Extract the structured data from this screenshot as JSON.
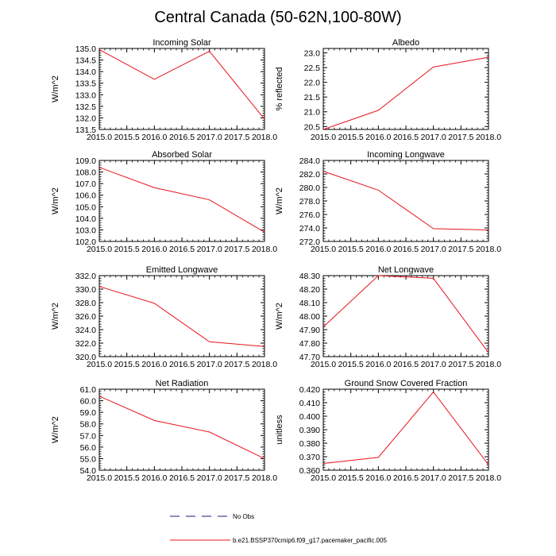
{
  "title": "Central Canada (50-62N,100-80W)",
  "colors": {
    "series": "#e8141c",
    "obs": "#1a1a7a",
    "axis": "#000000"
  },
  "legend": [
    {
      "label": "No Obs",
      "style": "dashed"
    },
    {
      "label": "b.e21.BSSP370cmip6.f09_g17.pacemaker_pacific.005",
      "style": "solid"
    }
  ],
  "chart_data": [
    {
      "type": "line",
      "title": "Incoming Solar",
      "ylabel": "W/m^2",
      "x": [
        2015.0,
        2016.0,
        2017.0,
        2018.0
      ],
      "y": [
        134.95,
        133.67,
        134.88,
        131.95
      ],
      "xlim": [
        2015.0,
        2018.0
      ],
      "ylim": [
        131.5,
        135.0
      ],
      "xticks": [
        "2015.0",
        "2015.5",
        "2016.0",
        "2016.5",
        "2017.0",
        "2017.5",
        "2018.0"
      ],
      "yticks": [
        "131.5",
        "132.0",
        "132.5",
        "133.0",
        "133.5",
        "134.0",
        "134.5",
        "135.0"
      ]
    },
    {
      "type": "line",
      "title": "Albedo",
      "ylabel": "% reflected",
      "x": [
        2015.0,
        2016.0,
        2017.0,
        2018.0
      ],
      "y": [
        20.4,
        21.05,
        22.52,
        22.85
      ],
      "xlim": [
        2015.0,
        2018.0
      ],
      "ylim": [
        20.4,
        23.15
      ],
      "xticks": [
        "2015.0",
        "2015.5",
        "2016.0",
        "2016.5",
        "2017.0",
        "2017.5",
        "2018.0"
      ],
      "yticks": [
        "20.5",
        "21.0",
        "21.5",
        "22.0",
        "22.5",
        "23.0"
      ]
    },
    {
      "type": "line",
      "title": "Absorbed Solar",
      "ylabel": "W/m^2",
      "x": [
        2015.0,
        2016.0,
        2017.0,
        2018.0
      ],
      "y": [
        108.4,
        106.65,
        105.6,
        102.8
      ],
      "xlim": [
        2015.0,
        2018.0
      ],
      "ylim": [
        102.0,
        109.0
      ],
      "xticks": [
        "2015.0",
        "2015.5",
        "2016.0",
        "2016.5",
        "2017.0",
        "2017.5",
        "2018.0"
      ],
      "yticks": [
        "102.0",
        "103.0",
        "104.0",
        "105.0",
        "106.0",
        "107.0",
        "108.0",
        "109.0"
      ]
    },
    {
      "type": "line",
      "title": "Incoming Longwave",
      "ylabel": "W/m^2",
      "x": [
        2015.0,
        2016.0,
        2017.0,
        2018.0
      ],
      "y": [
        282.4,
        279.6,
        273.9,
        273.7
      ],
      "xlim": [
        2015.0,
        2018.0
      ],
      "ylim": [
        272.0,
        284.0
      ],
      "xticks": [
        "2015.0",
        "2015.5",
        "2016.0",
        "2016.5",
        "2017.0",
        "2017.5",
        "2018.0"
      ],
      "yticks": [
        "272.0",
        "274.0",
        "276.0",
        "278.0",
        "280.0",
        "282.0",
        "284.0"
      ]
    },
    {
      "type": "line",
      "title": "Emitted Longwave",
      "ylabel": "W/m^2",
      "x": [
        2015.0,
        2016.0,
        2017.0,
        2018.0
      ],
      "y": [
        330.4,
        327.9,
        322.2,
        321.5
      ],
      "xlim": [
        2015.0,
        2018.0
      ],
      "ylim": [
        320.0,
        332.0
      ],
      "xticks": [
        "2015.0",
        "2015.5",
        "2016.0",
        "2016.5",
        "2017.0",
        "2017.5",
        "2018.0"
      ],
      "yticks": [
        "320.0",
        "322.0",
        "324.0",
        "326.0",
        "328.0",
        "330.0",
        "332.0"
      ]
    },
    {
      "type": "line",
      "title": "Net Longwave",
      "ylabel": "W/m^2",
      "x": [
        2015.0,
        2016.0,
        2017.0,
        2018.0
      ],
      "y": [
        47.92,
        48.3,
        48.28,
        47.73
      ],
      "xlim": [
        2015.0,
        2018.0
      ],
      "ylim": [
        47.7,
        48.3
      ],
      "xticks": [
        "2015.0",
        "2015.5",
        "2016.0",
        "2016.5",
        "2017.0",
        "2017.5",
        "2018.0"
      ],
      "yticks": [
        "47.70",
        "47.80",
        "47.90",
        "48.00",
        "48.10",
        "48.20",
        "48.30"
      ]
    },
    {
      "type": "line",
      "title": "Net Radiation",
      "ylabel": "W/m^2",
      "x": [
        2015.0,
        2016.0,
        2017.0,
        2018.0
      ],
      "y": [
        60.4,
        58.3,
        57.3,
        55.0
      ],
      "xlim": [
        2015.0,
        2018.0
      ],
      "ylim": [
        54.0,
        61.0
      ],
      "xticks": [
        "2015.0",
        "2015.5",
        "2016.0",
        "2016.5",
        "2017.0",
        "2017.5",
        "2018.0"
      ],
      "yticks": [
        "54.0",
        "55.0",
        "56.0",
        "57.0",
        "58.0",
        "59.0",
        "60.0",
        "61.0"
      ]
    },
    {
      "type": "line",
      "title": "Ground Snow Covered Fraction",
      "ylabel": "unitless",
      "x": [
        2015.0,
        2016.0,
        2017.0,
        2018.0
      ],
      "y": [
        0.365,
        0.3695,
        0.418,
        0.364
      ],
      "xlim": [
        2015.0,
        2018.0
      ],
      "ylim": [
        0.36,
        0.42
      ],
      "xticks": [
        "2015.0",
        "2015.5",
        "2016.0",
        "2016.5",
        "2017.0",
        "2017.5",
        "2018.0"
      ],
      "yticks": [
        "0.360",
        "0.370",
        "0.380",
        "0.390",
        "0.400",
        "0.410",
        "0.420"
      ]
    }
  ]
}
